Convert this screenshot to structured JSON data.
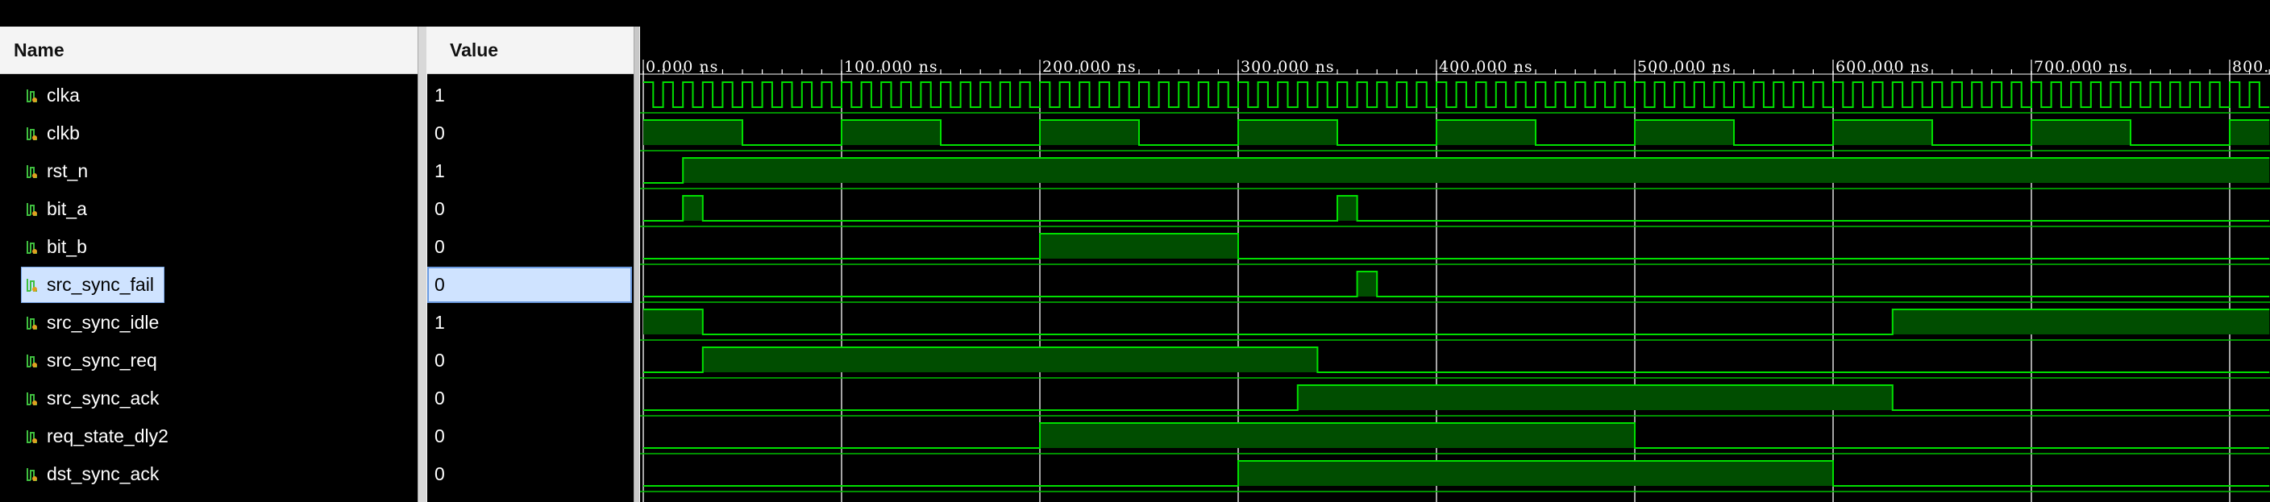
{
  "header": {
    "name_label": "Name",
    "value_label": "Value"
  },
  "signals": [
    {
      "name": "clka",
      "value": "1",
      "icon": "signal-icon"
    },
    {
      "name": "clkb",
      "value": "0",
      "icon": "signal-icon"
    },
    {
      "name": "rst_n",
      "value": "1",
      "icon": "signal-icon"
    },
    {
      "name": "bit_a",
      "value": "0",
      "icon": "signal-icon"
    },
    {
      "name": "bit_b",
      "value": "0",
      "icon": "signal-icon"
    },
    {
      "name": "src_sync_fail",
      "value": "0",
      "icon": "signal-icon",
      "selected": true
    },
    {
      "name": "src_sync_idle",
      "value": "1",
      "icon": "signal-icon"
    },
    {
      "name": "src_sync_req",
      "value": "0",
      "icon": "signal-icon"
    },
    {
      "name": "src_sync_ack",
      "value": "0",
      "icon": "signal-icon"
    },
    {
      "name": "req_state_dly2",
      "value": "0",
      "icon": "signal-icon"
    },
    {
      "name": "dst_sync_ack",
      "value": "0",
      "icon": "signal-icon"
    }
  ],
  "time_axis": {
    "tick_labels": [
      "0.000 ns",
      "100.000 ns",
      "200.000 ns",
      "300.000 ns",
      "400.000 ns",
      "500.000 ns",
      "600.000 ns",
      "700.000 ns",
      "800.000 ns"
    ],
    "unit": "ns",
    "major_ticks_ns": [
      0,
      100,
      200,
      300,
      400,
      500,
      600,
      700,
      800
    ],
    "range_ns": [
      0,
      820
    ]
  },
  "waveforms": {
    "clka": {
      "type": "clock",
      "period_ns": 10,
      "start_level": 1
    },
    "clkb": {
      "type": "clock",
      "period_ns": 100,
      "start_level": 1
    },
    "rst_n": {
      "high": [
        [
          20,
          820
        ]
      ]
    },
    "bit_a": {
      "high": [
        [
          20,
          30
        ],
        [
          350,
          360
        ]
      ]
    },
    "bit_b": {
      "high": [
        [
          200,
          300
        ]
      ]
    },
    "src_sync_fail": {
      "high": [
        [
          360,
          370
        ]
      ]
    },
    "src_sync_idle": {
      "high": [
        [
          0,
          30
        ],
        [
          630,
          820
        ]
      ]
    },
    "src_sync_req": {
      "high": [
        [
          30,
          340
        ]
      ]
    },
    "src_sync_ack": {
      "high": [
        [
          330,
          630
        ]
      ]
    },
    "req_state_dly2": {
      "high": [
        [
          200,
          500
        ]
      ]
    },
    "dst_sync_ack": {
      "high": [
        [
          300,
          600
        ]
      ]
    }
  },
  "colors": {
    "wave": "#00e000",
    "wave_fill": "#004d00",
    "grid": "#dcdcdc",
    "row_separator": "#00c000",
    "selection": "#cfe3ff"
  }
}
